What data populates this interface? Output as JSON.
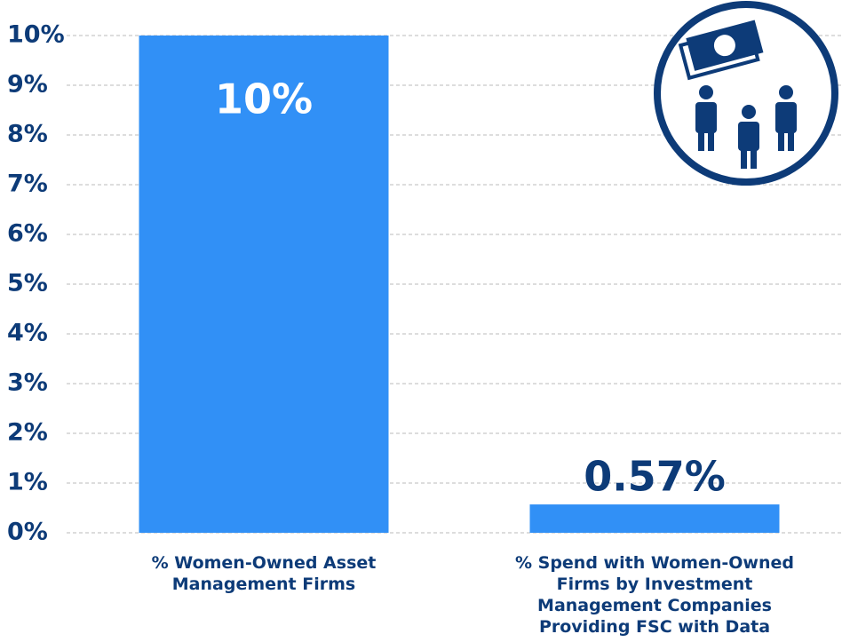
{
  "chart_data": {
    "type": "bar",
    "categories": [
      "% Women-Owned Asset Management Firms",
      "% Spend with Women-Owned Firms by Investment Management Companies Providing FSC with Data"
    ],
    "values": [
      10,
      0.57
    ],
    "value_labels": [
      "10%",
      "0.57%"
    ],
    "color": "#3190f6",
    "ylim": [
      0,
      10
    ],
    "yticks": [
      {
        "value": 0,
        "label": "0%"
      },
      {
        "value": 1,
        "label": "1%"
      },
      {
        "value": 2,
        "label": "2%"
      },
      {
        "value": 3,
        "label": "3%"
      },
      {
        "value": 4,
        "label": "4%"
      },
      {
        "value": 5,
        "label": "5%"
      },
      {
        "value": 6,
        "label": "6%"
      },
      {
        "value": 7,
        "label": "7%"
      },
      {
        "value": 8,
        "label": "8%"
      },
      {
        "value": 9,
        "label": "9%"
      },
      {
        "value": 10,
        "label": "10%"
      }
    ],
    "grid": true
  }
}
